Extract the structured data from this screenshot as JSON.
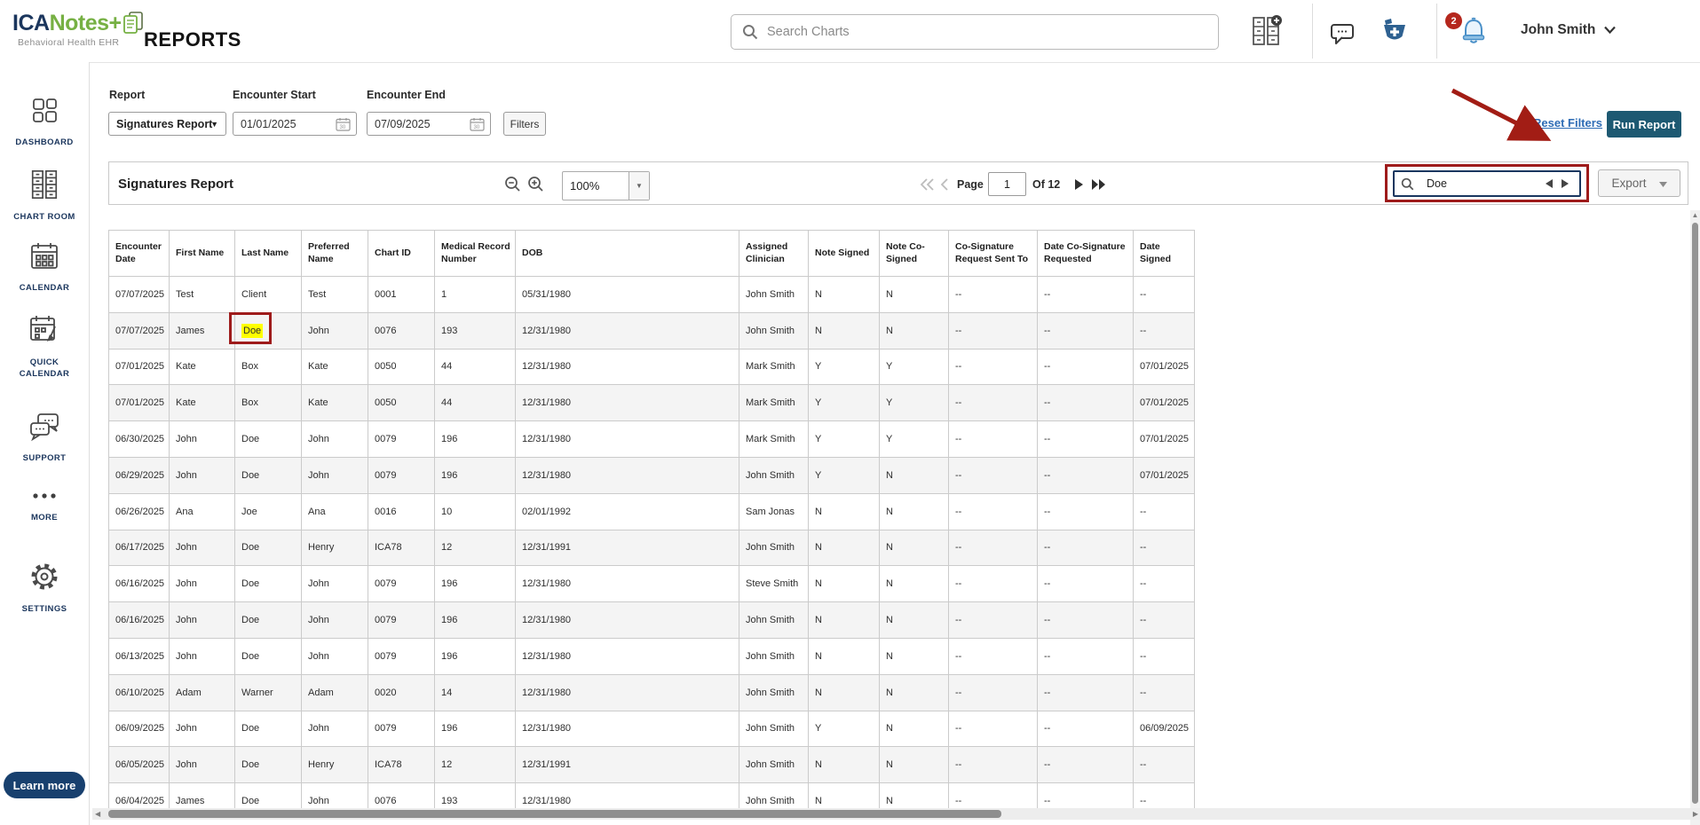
{
  "header": {
    "logo": {
      "ica": "ICA",
      "notes": "Notes",
      "plus": "+",
      "tagline": "Behavioral Health EHR"
    },
    "page_title": "REPORTS",
    "search_placeholder": "Search Charts",
    "notification_count": "2",
    "user_name": "John Smith"
  },
  "sidebar": {
    "items": [
      {
        "icon": "dashboard-icon",
        "label": "DASHBOARD"
      },
      {
        "icon": "chart-room-icon",
        "label": "CHART ROOM"
      },
      {
        "icon": "calendar-icon",
        "label": "CALENDAR"
      },
      {
        "icon": "quick-calendar-icon",
        "label": "QUICK CALENDAR"
      },
      {
        "icon": "support-icon",
        "label": "SUPPORT"
      },
      {
        "icon": "more-icon",
        "label": "MORE"
      },
      {
        "icon": "settings-icon",
        "label": "SETTINGS"
      }
    ],
    "learn_more_label": "Learn more"
  },
  "filters": {
    "report_label": "Report",
    "report_value": "Signatures Report",
    "encounter_start_label": "Encounter Start",
    "encounter_start_value": "01/01/2025",
    "encounter_end_label": "Encounter End",
    "encounter_end_value": "07/09/2025",
    "filters_button": "Filters",
    "reset_filters": "Reset Filters",
    "run_report": "Run Report"
  },
  "toolbar": {
    "title": "Signatures Report",
    "zoom_value": "100%",
    "page_label": "Page",
    "page_value": "1",
    "page_total": "Of 12",
    "search_value": "Doe",
    "export_label": "Export"
  },
  "table": {
    "columns": [
      "Encounter\nDate",
      "First Name",
      "Last Name",
      "Preferred\nName",
      "Chart ID",
      "Medical Record\nNumber",
      "DOB",
      "Assigned\nClinician",
      "Note Signed",
      "Note Co-\nSigned",
      "Co-Signature\nRequest Sent To",
      "Date Co-Signature\nRequested",
      "Date Signed"
    ],
    "highlight": {
      "row_index": 1,
      "column_index": 2
    },
    "rows": [
      [
        "07/07/2025",
        "Test",
        "Client",
        "Test",
        "0001",
        "1",
        "05/31/1980",
        "John Smith",
        "N",
        "N",
        "--",
        "--",
        "--"
      ],
      [
        "07/07/2025",
        "James",
        "Doe",
        "John",
        "0076",
        "193",
        "12/31/1980",
        "John Smith",
        "N",
        "N",
        "--",
        "--",
        "--"
      ],
      [
        "07/01/2025",
        "Kate",
        "Box",
        "Kate",
        "0050",
        "44",
        "12/31/1980",
        "Mark Smith",
        "Y",
        "Y",
        "--",
        "--",
        "07/01/2025"
      ],
      [
        "07/01/2025",
        "Kate",
        "Box",
        "Kate",
        "0050",
        "44",
        "12/31/1980",
        "Mark Smith",
        "Y",
        "Y",
        "--",
        "--",
        "07/01/2025"
      ],
      [
        "06/30/2025",
        "John",
        "Doe",
        "John",
        "0079",
        "196",
        "12/31/1980",
        "Mark Smith",
        "Y",
        "Y",
        "--",
        "--",
        "07/01/2025"
      ],
      [
        "06/29/2025",
        "John",
        "Doe",
        "John",
        "0079",
        "196",
        "12/31/1980",
        "John Smith",
        "Y",
        "N",
        "--",
        "--",
        "07/01/2025"
      ],
      [
        "06/26/2025",
        "Ana",
        "Joe",
        "Ana",
        "0016",
        "10",
        "02/01/1992",
        "Sam Jonas",
        "N",
        "N",
        "--",
        "--",
        "--"
      ],
      [
        "06/17/2025",
        "John",
        "Doe",
        "Henry",
        "ICA78",
        "12",
        "12/31/1991",
        "John Smith",
        "N",
        "N",
        "--",
        "--",
        "--"
      ],
      [
        "06/16/2025",
        "John",
        "Doe",
        "John",
        "0079",
        "196",
        "12/31/1980",
        "Steve Smith",
        "N",
        "N",
        "--",
        "--",
        "--"
      ],
      [
        "06/16/2025",
        "John",
        "Doe",
        "John",
        "0079",
        "196",
        "12/31/1980",
        "John Smith",
        "N",
        "N",
        "--",
        "--",
        "--"
      ],
      [
        "06/13/2025",
        "John",
        "Doe",
        "John",
        "0079",
        "196",
        "12/31/1980",
        "John Smith",
        "N",
        "N",
        "--",
        "--",
        "--"
      ],
      [
        "06/10/2025",
        "Adam",
        "Warner",
        "Adam",
        "0020",
        "14",
        "12/31/1980",
        "John Smith",
        "N",
        "N",
        "--",
        "--",
        "--"
      ],
      [
        "06/09/2025",
        "John",
        "Doe",
        "John",
        "0079",
        "196",
        "12/31/1980",
        "John Smith",
        "Y",
        "N",
        "--",
        "--",
        "06/09/2025"
      ],
      [
        "06/05/2025",
        "John",
        "Doe",
        "Henry",
        "ICA78",
        "12",
        "12/31/1991",
        "John Smith",
        "N",
        "N",
        "--",
        "--",
        "--"
      ],
      [
        "06/04/2025",
        "James",
        "Doe",
        "John",
        "0076",
        "193",
        "12/31/1980",
        "John Smith",
        "N",
        "N",
        "--",
        "--",
        "--"
      ]
    ]
  },
  "colors": {
    "brand_navy": "#1b365d",
    "brand_green": "#76b043",
    "annotation_red": "#9e1b1b",
    "highlight_yellow": "#ffff00",
    "run_report_bg": "#1d5972",
    "link_blue": "#2e6cb5",
    "badge_red": "#b5271d",
    "bell_blue": "#4a90c8",
    "pharmacy_blue": "#2e6191"
  }
}
